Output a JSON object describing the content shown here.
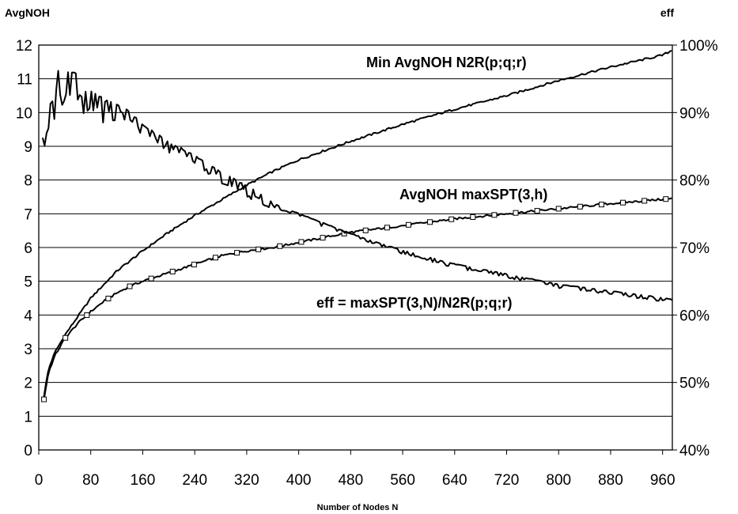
{
  "chart_data": {
    "type": "line",
    "title": "",
    "xlabel": "Number of Nodes N",
    "ylabel_left": "AvgNOH",
    "ylabel_right": "eff",
    "xlim": [
      0,
      975
    ],
    "ylim_left": [
      0,
      12
    ],
    "ylim_right": [
      40,
      100
    ],
    "grid": true,
    "x_ticks": [
      "0",
      "80",
      "160",
      "240",
      "320",
      "400",
      "480",
      "560",
      "640",
      "720",
      "800",
      "880",
      "960"
    ],
    "y_ticks_left": [
      "0",
      "1",
      "2",
      "3",
      "4",
      "5",
      "6",
      "7",
      "8",
      "9",
      "10",
      "11",
      "12"
    ],
    "y_ticks_right": [
      "40%",
      "50%",
      "60%",
      "70%",
      "80%",
      "90%",
      "100%"
    ],
    "annotations": [
      {
        "text": "Min AvgNOH N2R(p;q;r)",
        "series": "Min AvgNOH N2R(p;q;r)"
      },
      {
        "text": "AvgNOH maxSPT(3,h)",
        "series": "AvgNOH maxSPT(3,h)"
      },
      {
        "text": "eff = maxSPT(3,N)/N2R(p;q;r)",
        "series": "eff = maxSPT(3,N)/N2R(p;q;r)"
      }
    ],
    "series": [
      {
        "name": "Min AvgNOH N2R(p;q;r)",
        "axis": "left",
        "x": [
          8,
          15,
          25,
          40,
          60,
          80,
          100,
          120,
          140,
          160,
          200,
          240,
          280,
          320,
          360,
          400,
          480,
          560,
          640,
          720,
          800,
          880,
          960,
          975
        ],
        "y": [
          1.6,
          2.4,
          2.9,
          3.4,
          3.95,
          4.5,
          4.9,
          5.3,
          5.6,
          5.9,
          6.45,
          6.95,
          7.4,
          7.85,
          8.25,
          8.6,
          9.15,
          9.65,
          10.1,
          10.5,
          10.95,
          11.35,
          11.7,
          11.85
        ]
      },
      {
        "name": "AvgNOH maxSPT(3,h)",
        "axis": "left",
        "x": [
          8,
          15,
          25,
          40,
          60,
          80,
          100,
          120,
          140,
          160,
          200,
          240,
          280,
          320,
          360,
          400,
          480,
          560,
          640,
          720,
          800,
          880,
          960,
          975
        ],
        "y": [
          1.5,
          2.3,
          2.8,
          3.3,
          3.75,
          4.1,
          4.4,
          4.65,
          4.85,
          5.0,
          5.25,
          5.5,
          5.75,
          5.9,
          6.0,
          6.15,
          6.45,
          6.65,
          6.85,
          7.0,
          7.15,
          7.3,
          7.43,
          7.45
        ],
        "markers": true
      },
      {
        "name": "eff = maxSPT(3,N)/N2R(p;q;r)",
        "axis": "right",
        "x": [
          6,
          8,
          10,
          13,
          16,
          20,
          25,
          30,
          35,
          40,
          50,
          60,
          70,
          80,
          100,
          120,
          140,
          160,
          200,
          240,
          280,
          320,
          360,
          400,
          480,
          560,
          640,
          720,
          800,
          880,
          960,
          975
        ],
        "y": [
          86,
          82,
          92,
          89,
          87,
          95,
          91,
          96,
          90,
          95,
          96,
          95,
          93,
          93,
          91.5,
          91,
          90,
          88,
          85.5,
          83.5,
          81,
          79,
          76.5,
          75,
          72,
          69.5,
          67.5,
          66,
          64.5,
          63.5,
          62.5,
          62.2
        ],
        "noisy_below": 360
      }
    ]
  }
}
